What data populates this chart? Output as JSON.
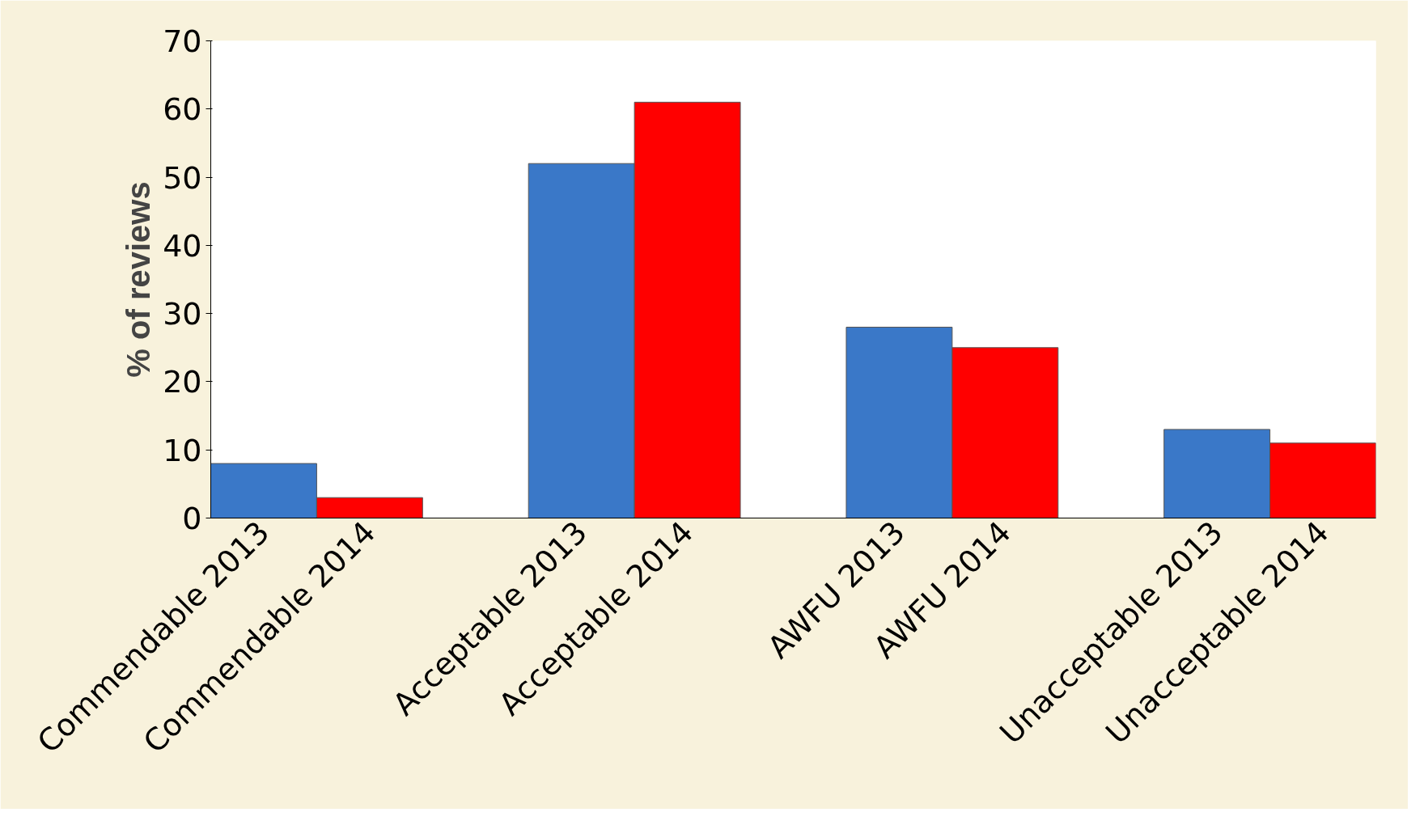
{
  "chart_data": {
    "type": "bar",
    "ylabel": "% of reviews",
    "categories": [
      "Commendable 2013",
      "Commendable 2014",
      "Acceptable 2013",
      "Acceptable 2014",
      "AWFU 2013",
      "AWFU 2014",
      "Unacceptable 2013",
      "Unacceptable 2014"
    ],
    "values": [
      8,
      3,
      52,
      61,
      28,
      25,
      13,
      11
    ],
    "colors": [
      "#3a78c8",
      "#ff0000",
      "#3a78c8",
      "#ff0000",
      "#3a78c8",
      "#ff0000",
      "#3a78c8",
      "#ff0000"
    ],
    "ylim": [
      0,
      70
    ],
    "yticks": [
      0,
      10,
      20,
      30,
      40,
      50,
      60,
      70
    ],
    "grid": false
  }
}
